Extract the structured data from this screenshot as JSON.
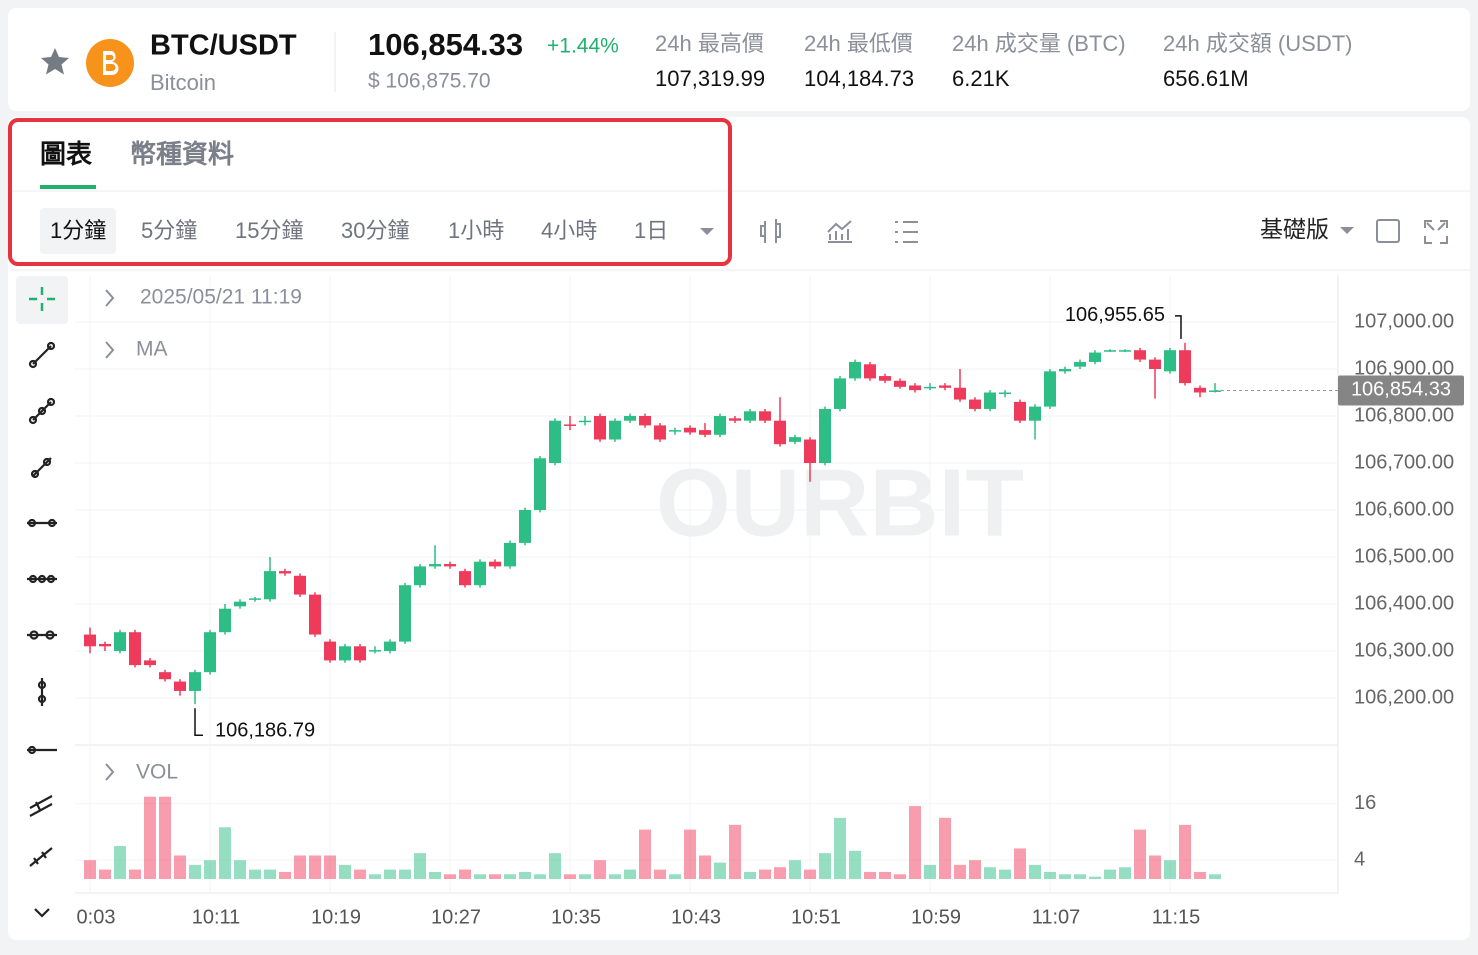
{
  "header": {
    "pair": "BTC/USDT",
    "name": "Bitcoin",
    "price": "106,854.33",
    "change": "+1.44%",
    "usd_price": "$ 106,875.70",
    "stats": [
      {
        "label": "24h 最高價",
        "value": "107,319.99"
      },
      {
        "label": "24h 最低價",
        "value": "104,184.73"
      },
      {
        "label": "24h 成交量 (BTC)",
        "value": "6.21K"
      },
      {
        "label": "24h 成交額 (USDT)",
        "value": "656.61M"
      }
    ]
  },
  "tabs": [
    "圖表",
    "幣種資料"
  ],
  "intervals": [
    "1分鐘",
    "5分鐘",
    "15分鐘",
    "30分鐘",
    "1小時",
    "4小時",
    "1日"
  ],
  "view_mode": "基礎版",
  "chart_data": {
    "type": "candlestick",
    "legend_time": "2025/05/21 11:19",
    "indicator": "MA",
    "watermark": "OURBIT",
    "up_color": "#2ebd85",
    "down_color": "#ef3b5b",
    "grid": true,
    "open": [
      106335,
      106315,
      106300,
      106340,
      106280,
      106255,
      106235,
      106215,
      106255,
      106340,
      106395,
      106410,
      106410,
      106470,
      106460,
      106420,
      106320,
      106280,
      106310,
      106300,
      106300,
      106320,
      106440,
      106480,
      106485,
      106470,
      106440,
      106490,
      106480,
      106530,
      106600,
      106700,
      106782,
      106788,
      106800,
      106750,
      106790,
      106800,
      106780,
      106768,
      106775,
      106770,
      106760,
      106795,
      106790,
      106810,
      106790,
      106745,
      106750,
      106700,
      106815,
      106880,
      106910,
      106885,
      106875,
      106865,
      106860,
      106865,
      106860,
      106835,
      106815,
      106848,
      106830,
      106790,
      106820,
      106895,
      106905,
      106915,
      106938,
      106938,
      106940,
      106920,
      106895,
      106940,
      106860,
      106854
    ],
    "high": [
      106350,
      106320,
      106345,
      106345,
      106285,
      106260,
      106240,
      106260,
      106345,
      106400,
      106410,
      106415,
      106500,
      106475,
      106465,
      106425,
      106325,
      106315,
      106315,
      106310,
      106325,
      106445,
      106485,
      106525,
      106490,
      106475,
      106495,
      106495,
      106535,
      106605,
      106715,
      106795,
      106800,
      106800,
      106805,
      106795,
      106805,
      106805,
      106785,
      106775,
      106780,
      106785,
      106805,
      106800,
      106815,
      106815,
      106840,
      106760,
      106755,
      106820,
      106885,
      106920,
      106915,
      106890,
      106880,
      106870,
      106870,
      106870,
      106900,
      106840,
      106855,
      106855,
      106835,
      106825,
      106900,
      106905,
      106920,
      106940,
      106942,
      106942,
      106945,
      106925,
      106945,
      106955.65,
      106865,
      106870
    ],
    "low": [
      106295,
      106300,
      106295,
      106265,
      106265,
      106235,
      106205,
      106186.79,
      106250,
      106335,
      106390,
      106405,
      106405,
      106460,
      106415,
      106330,
      106275,
      106275,
      106275,
      106295,
      106295,
      106315,
      106435,
      106475,
      106475,
      106435,
      106435,
      106475,
      106475,
      106525,
      106595,
      106695,
      106770,
      106780,
      106745,
      106745,
      106785,
      106775,
      106745,
      106760,
      106760,
      106755,
      106755,
      106785,
      106785,
      106785,
      106735,
      106740,
      106660,
      106695,
      106810,
      106875,
      106875,
      106870,
      106858,
      106850,
      106855,
      106855,
      106830,
      106810,
      106810,
      106840,
      106785,
      106750,
      106815,
      106890,
      106900,
      106910,
      106936,
      106936,
      106915,
      106837,
      106890,
      106865,
      106840,
      106850
    ],
    "close": [
      106310,
      106310,
      106340,
      106270,
      106270,
      106240,
      106215,
      106255,
      106340,
      106390,
      106405,
      106412,
      106470,
      106465,
      106420,
      106335,
      106280,
      106310,
      106280,
      106302,
      106320,
      106440,
      106480,
      106485,
      106480,
      106440,
      106490,
      106480,
      106530,
      106600,
      106710,
      106790,
      106780,
      106790,
      106750,
      106790,
      106800,
      106780,
      106750,
      106770,
      106765,
      106760,
      106800,
      106790,
      106810,
      106790,
      106740,
      106755,
      106700,
      106815,
      106880,
      106915,
      106880,
      106875,
      106862,
      106855,
      106862,
      106860,
      106835,
      106815,
      106850,
      106850,
      106790,
      106820,
      106895,
      106900,
      106915,
      106935,
      106940,
      106940,
      106920,
      106900,
      106940,
      106870,
      106850,
      106854.33
    ],
    "xlim": [
      -1,
      83.2
    ],
    "xticks": [
      {
        "value": 0,
        "label": "0:03"
      },
      {
        "value": 8,
        "label": "10:11"
      },
      {
        "value": 16,
        "label": "10:19"
      },
      {
        "value": 24,
        "label": "10:27"
      },
      {
        "value": 32,
        "label": "10:35"
      },
      {
        "value": 40,
        "label": "10:43"
      },
      {
        "value": 48,
        "label": "10:51"
      },
      {
        "value": 56,
        "label": "10:59"
      },
      {
        "value": 64,
        "label": "11:07"
      },
      {
        "value": 72,
        "label": "11:15"
      }
    ],
    "ylim": [
      106100,
      107100
    ],
    "yticks": [
      {
        "value": 106200,
        "label": "106,200.00"
      },
      {
        "value": 106300,
        "label": "106,300.00"
      },
      {
        "value": 106400,
        "label": "106,400.00"
      },
      {
        "value": 106500,
        "label": "106,500.00"
      },
      {
        "value": 106600,
        "label": "106,600.00"
      },
      {
        "value": 106700,
        "label": "106,700.00"
      },
      {
        "value": 106800,
        "label": "106,800.00"
      },
      {
        "value": 106900,
        "label": "106,900.00"
      },
      {
        "value": 107000,
        "label": "107,000.00"
      }
    ],
    "annotations": [
      {
        "index": 73,
        "value": 106955.65,
        "label": "106,955.65"
      },
      {
        "index": 7,
        "value": 106186.79,
        "label": "106,186.79"
      }
    ],
    "last_price": {
      "value": 106854.33,
      "label": "106,854.33"
    },
    "volume": {
      "name": "VOL",
      "ylim": [
        0,
        27
      ],
      "yticks": [
        4,
        16
      ],
      "values": [
        4,
        2,
        7,
        2,
        17.5,
        17.5,
        5,
        3,
        4,
        11,
        4,
        2,
        2,
        1.5,
        5,
        5,
        5,
        3,
        2,
        1,
        2,
        2,
        5.5,
        1.5,
        1,
        2,
        1,
        1,
        1,
        1.5,
        1,
        5.5,
        1,
        1,
        4,
        1,
        2,
        10.5,
        2,
        1,
        10.5,
        5,
        3.5,
        11.5,
        1.5,
        2,
        2.5,
        4,
        2,
        5.5,
        13,
        6,
        1.5,
        1.5,
        1,
        15.5,
        3,
        13,
        3,
        4,
        2.5,
        2,
        6.5,
        3,
        1.5,
        1,
        1,
        0.5,
        2,
        2.5,
        10.5,
        5,
        4,
        11.5,
        1.5,
        1
      ]
    }
  }
}
